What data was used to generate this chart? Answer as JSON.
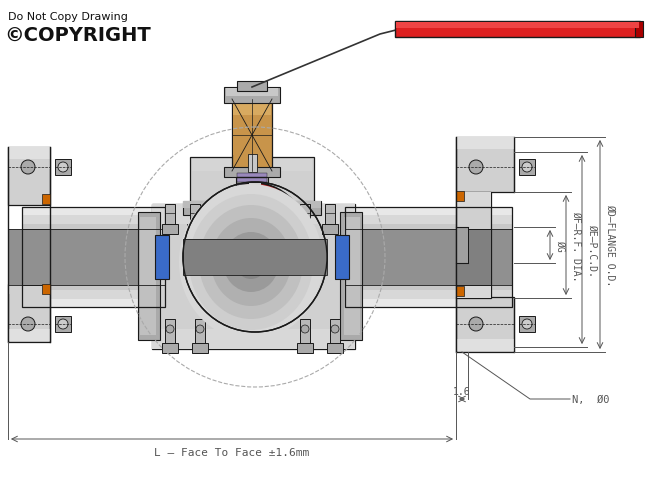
{
  "bg": "#ffffff",
  "lc": "#1a1a1a",
  "sl": "#d0d0d0",
  "sm": "#aaaaaa",
  "sd": "#808080",
  "sdd": "#555555",
  "red_seal": "#cc1111",
  "blue_seat": "#3a6bc8",
  "orange": "#cc6600",
  "bronze_lt": "#c8944a",
  "bronze_dk": "#8b6310",
  "handle_red": "#dd2020",
  "packing_purple": "#9988bb",
  "dim_color": "#555555",
  "title1": "Do Not Copy Drawing",
  "title2": "©COPYRIGHT",
  "dim_G": "ØG",
  "dim_F": "ØF–R.F. DIA.",
  "dim_E": "ØE–P.C.D.",
  "dim_D": "ØD–FLANGE O.D.",
  "dim_L": "L – Face To Face ±1.6mm",
  "dim_16": "1.6",
  "dim_N": "N,  Ø0"
}
